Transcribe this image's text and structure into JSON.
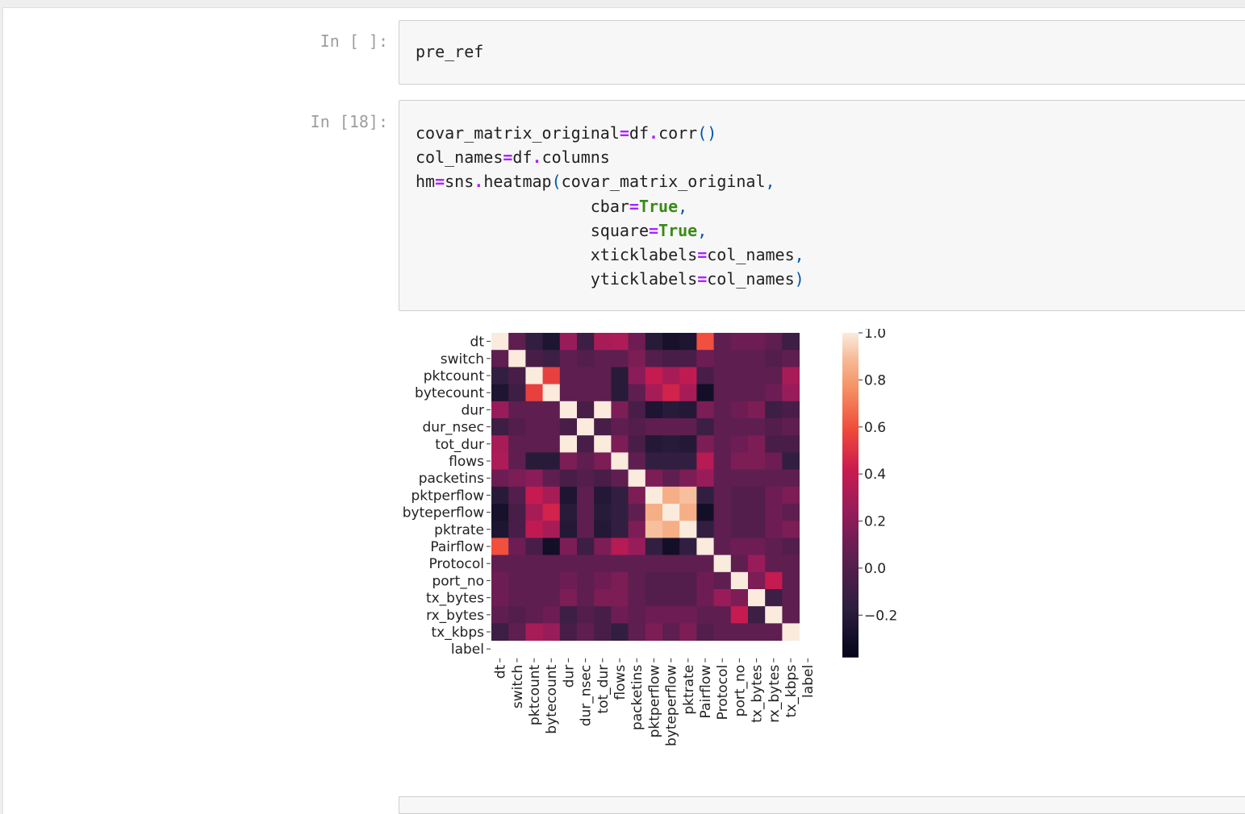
{
  "cells": [
    {
      "prompt": "In [ ]:",
      "code_lines": [
        [
          {
            "t": "pre_ref"
          }
        ]
      ]
    },
    {
      "prompt": "In [18]:",
      "code_lines": [
        [
          {
            "t": "covar_matrix_original"
          },
          {
            "t": "=",
            "c": "op"
          },
          {
            "t": "df"
          },
          {
            "t": ".",
            "c": "op"
          },
          {
            "t": "corr"
          },
          {
            "t": "()",
            "c": "pn"
          }
        ],
        [
          {
            "t": "col_names"
          },
          {
            "t": "=",
            "c": "op"
          },
          {
            "t": "df"
          },
          {
            "t": ".",
            "c": "op"
          },
          {
            "t": "columns"
          }
        ],
        [
          {
            "t": "hm"
          },
          {
            "t": "=",
            "c": "op"
          },
          {
            "t": "sns"
          },
          {
            "t": ".",
            "c": "op"
          },
          {
            "t": "heatmap"
          },
          {
            "t": "(",
            "c": "pn"
          },
          {
            "t": "covar_matrix_original"
          },
          {
            "t": ",",
            "c": "pn"
          }
        ],
        [
          {
            "t": "                  cbar"
          },
          {
            "t": "=",
            "c": "op"
          },
          {
            "t": "True",
            "c": "kw"
          },
          {
            "t": ",",
            "c": "pn"
          }
        ],
        [
          {
            "t": "                  square"
          },
          {
            "t": "=",
            "c": "op"
          },
          {
            "t": "True",
            "c": "kw"
          },
          {
            "t": ",",
            "c": "pn"
          }
        ],
        [
          {
            "t": "                  xticklabels"
          },
          {
            "t": "=",
            "c": "op"
          },
          {
            "t": "col_names"
          },
          {
            "t": ",",
            "c": "pn"
          }
        ],
        [
          {
            "t": "                  yticklabels"
          },
          {
            "t": "=",
            "c": "op"
          },
          {
            "t": "col_names"
          },
          {
            "t": ")",
            "c": "pn"
          }
        ]
      ]
    }
  ],
  "chart_data": {
    "type": "heatmap",
    "labels": [
      "dt",
      "switch",
      "pktcount",
      "bytecount",
      "dur",
      "dur_nsec",
      "tot_dur",
      "flows",
      "packetins",
      "pktperflow",
      "byteperflow",
      "pktrate",
      "Pairflow",
      "Protocol",
      "port_no",
      "tx_bytes",
      "rx_bytes",
      "tx_kbps",
      "label"
    ],
    "values": [
      [
        1.0,
        0.05,
        -0.15,
        -0.25,
        0.25,
        -0.1,
        0.3,
        0.32,
        0.1,
        -0.2,
        -0.28,
        -0.25,
        0.6,
        0.05,
        0.1,
        0.1,
        0.05,
        -0.1,
        null
      ],
      [
        0.05,
        1.0,
        -0.05,
        -0.1,
        0.05,
        0.0,
        0.05,
        0.05,
        0.15,
        0.0,
        -0.05,
        -0.05,
        0.1,
        0.05,
        0.05,
        0.05,
        0.0,
        0.05,
        null
      ],
      [
        -0.15,
        -0.05,
        1.0,
        0.55,
        0.05,
        0.05,
        0.05,
        -0.2,
        0.2,
        0.4,
        0.3,
        0.38,
        -0.05,
        0.05,
        0.05,
        0.05,
        0.05,
        0.3,
        null
      ],
      [
        -0.25,
        -0.1,
        0.55,
        1.0,
        0.05,
        0.05,
        0.05,
        -0.2,
        0.05,
        0.3,
        0.45,
        0.3,
        -0.3,
        0.05,
        0.05,
        0.05,
        0.1,
        0.25,
        null
      ],
      [
        0.25,
        0.05,
        0.05,
        0.05,
        1.0,
        -0.05,
        1.0,
        0.15,
        -0.05,
        -0.25,
        -0.2,
        -0.22,
        0.15,
        0.05,
        0.1,
        0.15,
        -0.1,
        -0.05,
        null
      ],
      [
        -0.1,
        0.0,
        0.05,
        0.05,
        -0.05,
        1.0,
        -0.05,
        0.05,
        0.0,
        0.05,
        0.05,
        0.05,
        -0.1,
        0.05,
        0.05,
        0.05,
        0.0,
        0.05,
        null
      ],
      [
        0.3,
        0.05,
        0.05,
        0.05,
        1.0,
        -0.05,
        1.0,
        0.15,
        -0.05,
        -0.22,
        -0.2,
        -0.22,
        0.15,
        0.05,
        0.1,
        0.15,
        -0.05,
        -0.05,
        null
      ],
      [
        0.32,
        0.05,
        -0.2,
        -0.2,
        0.15,
        0.05,
        0.15,
        1.0,
        0.05,
        -0.15,
        -0.15,
        -0.15,
        0.35,
        0.05,
        0.15,
        0.15,
        0.1,
        -0.15,
        null
      ],
      [
        0.1,
        0.15,
        0.2,
        0.05,
        -0.05,
        0.0,
        -0.05,
        0.05,
        1.0,
        0.15,
        0.05,
        0.15,
        0.25,
        0.05,
        0.05,
        0.05,
        0.05,
        0.05,
        null
      ],
      [
        -0.2,
        0.0,
        0.4,
        0.3,
        -0.25,
        0.05,
        -0.22,
        -0.15,
        0.15,
        1.0,
        0.85,
        0.9,
        -0.15,
        0.05,
        0.0,
        0.0,
        0.1,
        0.15,
        null
      ],
      [
        -0.28,
        -0.05,
        0.3,
        0.45,
        -0.2,
        0.05,
        -0.2,
        -0.15,
        0.05,
        0.85,
        1.0,
        0.85,
        -0.3,
        0.05,
        0.0,
        0.0,
        0.1,
        0.05,
        null
      ],
      [
        -0.25,
        -0.05,
        0.38,
        0.3,
        -0.22,
        0.05,
        -0.22,
        -0.15,
        0.15,
        0.9,
        0.85,
        1.0,
        -0.15,
        0.05,
        0.0,
        0.0,
        0.1,
        0.15,
        null
      ],
      [
        0.6,
        0.1,
        -0.05,
        -0.3,
        0.15,
        -0.1,
        0.15,
        0.35,
        0.25,
        -0.15,
        -0.3,
        -0.15,
        1.0,
        0.05,
        0.1,
        0.1,
        0.05,
        0.0,
        null
      ],
      [
        0.05,
        0.05,
        0.05,
        0.05,
        0.05,
        0.05,
        0.05,
        0.05,
        0.05,
        0.05,
        0.05,
        0.05,
        0.05,
        1.0,
        0.05,
        0.25,
        0.05,
        0.05,
        null
      ],
      [
        0.1,
        0.05,
        0.05,
        0.05,
        0.1,
        0.05,
        0.1,
        0.15,
        0.05,
        0.0,
        0.0,
        0.0,
        0.1,
        0.05,
        1.0,
        0.15,
        0.4,
        0.05,
        null
      ],
      [
        0.1,
        0.05,
        0.05,
        0.05,
        0.15,
        0.05,
        0.15,
        0.15,
        0.05,
        0.0,
        0.0,
        0.0,
        0.1,
        0.25,
        0.15,
        1.0,
        -0.1,
        0.05,
        null
      ],
      [
        0.05,
        0.0,
        0.05,
        0.1,
        -0.1,
        0.0,
        -0.05,
        0.1,
        0.05,
        0.1,
        0.1,
        0.1,
        0.05,
        0.05,
        0.4,
        -0.1,
        1.0,
        0.05,
        null
      ],
      [
        -0.1,
        0.05,
        0.3,
        0.25,
        -0.05,
        0.05,
        -0.05,
        -0.15,
        0.05,
        0.15,
        0.05,
        0.15,
        0.0,
        0.05,
        0.05,
        0.05,
        0.05,
        1.0,
        null
      ],
      [
        null,
        null,
        null,
        null,
        null,
        null,
        null,
        null,
        null,
        null,
        null,
        null,
        null,
        null,
        null,
        null,
        null,
        null,
        null
      ]
    ],
    "colorbar": {
      "min": -0.38,
      "max": 1.0,
      "ticks": [
        "1.0",
        "0.8",
        "0.6",
        "0.4",
        "0.2",
        "0.0",
        "−0.2"
      ],
      "tick_values": [
        1.0,
        0.8,
        0.6,
        0.4,
        0.2,
        0.0,
        -0.2
      ],
      "colormap": "rocket"
    },
    "title": "",
    "xlabel": "",
    "ylabel": ""
  }
}
